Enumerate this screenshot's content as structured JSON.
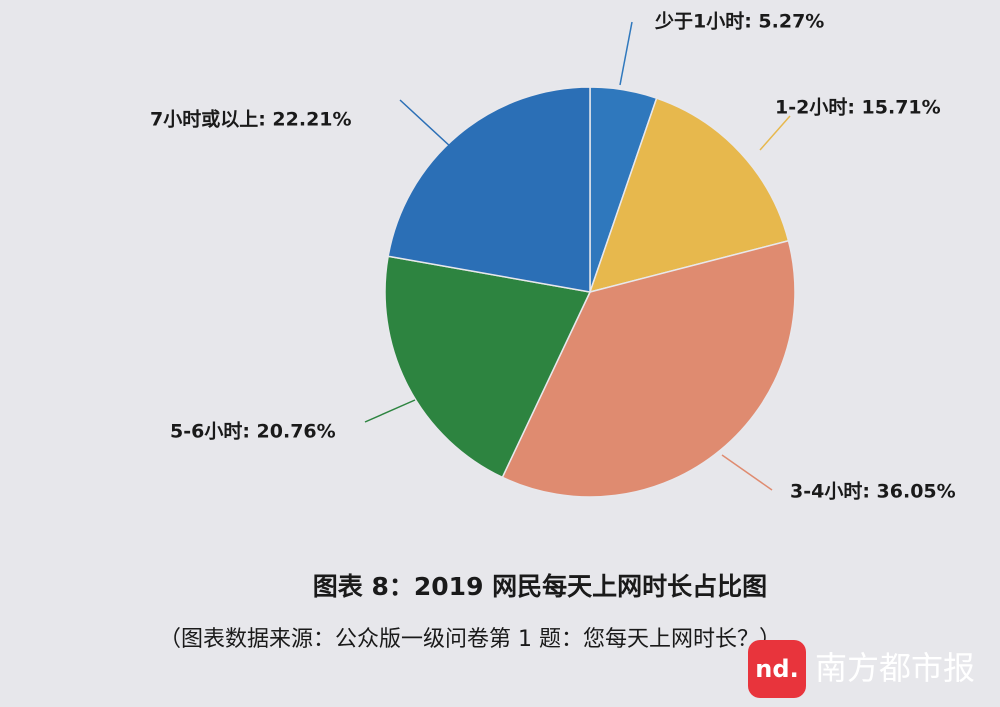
{
  "chart_data": {
    "type": "pie",
    "values": [
      5.27,
      15.71,
      36.05,
      20.76,
      22.21
    ],
    "value_labels": [
      "少于1小时: 5.27%",
      "1-2小时: 15.71%",
      "3-4小时: 36.05%",
      "5-6小时: 20.76%",
      "7小时或以上: 22.21%"
    ],
    "colors": [
      "#2f78bd",
      "#e7b84d",
      "#df8b70",
      "#2d8440",
      "#2b6fb6"
    ],
    "caption": "图表 8：2019 网民每天上网时长占比图",
    "source": "（图表数据来源：公众版一级问卷第 1 题：您每天上网时长？）"
  },
  "watermark": {
    "logo": "nd.",
    "text": "南方都市报"
  }
}
